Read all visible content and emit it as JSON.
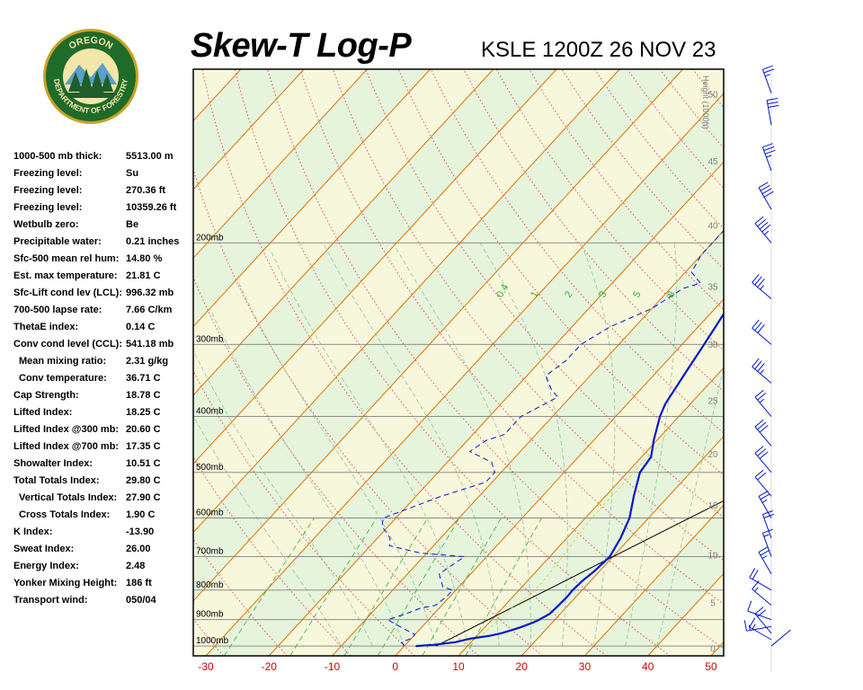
{
  "header": {
    "title": "Skew-T Log-P",
    "station_line": "KSLE 1200Z 26 NOV 23"
  },
  "logo": {
    "top_text": "OREGON",
    "bottom_text": "DEPARTMENT OF FORESTRY",
    "colors": {
      "ring": "#1f6b2a",
      "ring_border": "#c9a227",
      "sky": "#f4e6a8",
      "trees": "#1f5e2a",
      "mountain": "#5aa0c8"
    }
  },
  "indices": [
    {
      "label": "1000-500 mb thick:",
      "value": "5513.00 m",
      "indent": false
    },
    {
      "label": "Freezing level:",
      "value": "Su",
      "indent": false
    },
    {
      "label": "Freezing level:",
      "value": "270.36 ft",
      "indent": false
    },
    {
      "label": "Freezing level:",
      "value": "10359.26 ft",
      "indent": false
    },
    {
      "label": "Wetbulb zero:",
      "value": "Be",
      "indent": false
    },
    {
      "label": "Precipitable water:",
      "value": "0.21 inches",
      "indent": false
    },
    {
      "label": "Sfc-500 mean rel hum:",
      "value": "14.80 %",
      "indent": false
    },
    {
      "label": "Est. max temperature:",
      "value": "21.81 C",
      "indent": false
    },
    {
      "label": "Sfc-Lift cond lev (LCL):",
      "value": "996.32 mb",
      "indent": false
    },
    {
      "label": "700-500 lapse rate:",
      "value": "7.66 C/km",
      "indent": false
    },
    {
      "label": "ThetaE index:",
      "value": "0.14 C",
      "indent": false
    },
    {
      "label": "Conv cond level (CCL):",
      "value": "541.18 mb",
      "indent": false
    },
    {
      "label": "Mean mixing ratio:",
      "value": "2.31 g/kg",
      "indent": true
    },
    {
      "label": "Conv temperature:",
      "value": "36.71 C",
      "indent": true
    },
    {
      "label": "Cap Strength:",
      "value": "18.78 C",
      "indent": false
    },
    {
      "label": "Lifted Index:",
      "value": "18.25 C",
      "indent": false
    },
    {
      "label": "Lifted Index @300 mb:",
      "value": "20.60 C",
      "indent": false
    },
    {
      "label": "Lifted Index @700 mb:",
      "value": "17.35 C",
      "indent": false
    },
    {
      "label": "Showalter Index:",
      "value": "10.51 C",
      "indent": false
    },
    {
      "label": "Total Totals Index:",
      "value": "29.80 C",
      "indent": false
    },
    {
      "label": "Vertical Totals Index:",
      "value": "27.90 C",
      "indent": true
    },
    {
      "label": "Cross Totals Index:",
      "value": "1.90 C",
      "indent": true
    },
    {
      "label": "K Index:",
      "value": "-13.90",
      "indent": false
    },
    {
      "label": "Sweat Index:",
      "value": "26.00",
      "indent": false
    },
    {
      "label": "Energy Index:",
      "value": "2.48",
      "indent": false
    },
    {
      "label": "Yonker Mixing Height:",
      "value": "186 ft",
      "indent": false
    },
    {
      "label": "Transport wind:",
      "value": "050/04",
      "indent": false
    }
  ],
  "chart_data": {
    "type": "skew-t",
    "x_ticks": [
      -30,
      -20,
      -10,
      0,
      10,
      20,
      30,
      40,
      50
    ],
    "xlim": [
      -32,
      52
    ],
    "pressure_range_mb": [
      100,
      1040
    ],
    "pressure_labels": [
      {
        "p": 200,
        "label": "200mb"
      },
      {
        "p": 300,
        "label": "300mb"
      },
      {
        "p": 400,
        "label": "400mb"
      },
      {
        "p": 500,
        "label": "500mb"
      },
      {
        "p": 600,
        "label": "600mb"
      },
      {
        "p": 700,
        "label": "700mb"
      },
      {
        "p": 800,
        "label": "800mb"
      },
      {
        "p": 900,
        "label": "900mb"
      },
      {
        "p": 1000,
        "label": "1000mb"
      }
    ],
    "height_axis_title": "Height (1000ft)",
    "height_ticks": [
      0,
      5,
      10,
      15,
      20,
      25,
      30,
      35,
      40,
      45,
      50
    ],
    "mixing_ratio_labels": [
      "0.4",
      "1",
      "2",
      "3",
      "5",
      "8"
    ],
    "mixing_ratio_values": [
      0.4,
      1,
      2,
      3,
      5,
      8
    ],
    "temperature_profile": [
      [
        1000,
        1.8
      ],
      [
        995,
        4.5
      ],
      [
        985,
        7.5
      ],
      [
        970,
        9.5
      ],
      [
        960,
        12.0
      ],
      [
        950,
        13.5
      ],
      [
        930,
        15.5
      ],
      [
        910,
        17.0
      ],
      [
        900,
        17.5
      ],
      [
        880,
        18.3
      ],
      [
        850,
        18.5
      ],
      [
        820,
        18.6
      ],
      [
        800,
        18.5
      ],
      [
        770,
        18.7
      ],
      [
        740,
        19.2
      ],
      [
        700,
        19.5
      ],
      [
        650,
        18.5
      ],
      [
        600,
        17.0
      ],
      [
        550,
        14.5
      ],
      [
        500,
        12.0
      ],
      [
        470,
        11.5
      ],
      [
        440,
        9.5
      ],
      [
        400,
        7.0
      ],
      [
        380,
        6.0
      ],
      [
        330,
        4.5
      ],
      [
        300,
        3.5
      ],
      [
        250,
        1.5
      ],
      [
        220,
        1.5
      ],
      [
        210,
        4.0
      ],
      [
        200,
        8.5
      ],
      [
        195,
        14.0
      ],
      [
        170,
        17.0
      ],
      [
        150,
        22.0
      ],
      [
        130,
        28.0
      ],
      [
        115,
        30.0
      ],
      [
        100,
        32.0
      ]
    ],
    "dewpoint_profile": [
      [
        1000,
        0.0
      ],
      [
        985,
        -1.0
      ],
      [
        970,
        0.0
      ],
      [
        955,
        0.0
      ],
      [
        930,
        -3.0
      ],
      [
        900,
        -6.5
      ],
      [
        880,
        -4.5
      ],
      [
        860,
        -3.0
      ],
      [
        850,
        -1.0
      ],
      [
        820,
        -0.5
      ],
      [
        800,
        -0.5
      ],
      [
        790,
        -2.5
      ],
      [
        750,
        -5.0
      ],
      [
        700,
        -3.5
      ],
      [
        690,
        -11.0
      ],
      [
        670,
        -17.0
      ],
      [
        650,
        -18.0
      ],
      [
        620,
        -21.0
      ],
      [
        600,
        -22.0
      ],
      [
        550,
        -16.0
      ],
      [
        520,
        -11.0
      ],
      [
        500,
        -11.0
      ],
      [
        480,
        -13.0
      ],
      [
        460,
        -18.0
      ],
      [
        440,
        -17.0
      ],
      [
        430,
        -15.0
      ],
      [
        400,
        -15.0
      ],
      [
        380,
        -13.0
      ],
      [
        370,
        -12.0
      ],
      [
        360,
        -14.0
      ],
      [
        340,
        -17.0
      ],
      [
        320,
        -16.0
      ],
      [
        300,
        -16.0
      ],
      [
        280,
        -14.0
      ],
      [
        260,
        -10.0
      ],
      [
        240,
        -8.0
      ],
      [
        235,
        -6.0
      ],
      [
        225,
        -9.0
      ],
      [
        210,
        -10.0
      ],
      [
        200,
        -10.0
      ],
      [
        180,
        -10.0
      ],
      [
        160,
        -11.0
      ],
      [
        140,
        -12.0
      ],
      [
        120,
        -12.0
      ],
      [
        100,
        -9.0
      ]
    ],
    "parcel_profile": [
      [
        990,
        9.0
      ],
      [
        960,
        10.5
      ],
      [
        930,
        11.0
      ],
      [
        900,
        11.0
      ],
      [
        860,
        11.5
      ],
      [
        830,
        12.0
      ],
      [
        800,
        12.5
      ],
      [
        770,
        12.5
      ],
      [
        740,
        12.3
      ],
      [
        700,
        12.0
      ],
      [
        650,
        11.5
      ],
      [
        600,
        11.0
      ],
      [
        550,
        11.0
      ],
      [
        500,
        11.0
      ],
      [
        470,
        11.0
      ],
      [
        440,
        11.0
      ],
      [
        420,
        10.0
      ]
    ],
    "wind_barbs": [
      {
        "p": 1000,
        "dir": 50,
        "spd": 4
      },
      {
        "p": 975,
        "dir": 300,
        "spd": 15
      },
      {
        "p": 950,
        "dir": 320,
        "spd": 20
      },
      {
        "p": 925,
        "dir": 260,
        "spd": 15
      },
      {
        "p": 900,
        "dir": 290,
        "spd": 10
      },
      {
        "p": 850,
        "dir": 310,
        "spd": 15
      },
      {
        "p": 800,
        "dir": 300,
        "spd": 20
      },
      {
        "p": 750,
        "dir": 330,
        "spd": 25
      },
      {
        "p": 700,
        "dir": 340,
        "spd": 15
      },
      {
        "p": 650,
        "dir": 340,
        "spd": 20
      },
      {
        "p": 600,
        "dir": 330,
        "spd": 25
      },
      {
        "p": 550,
        "dir": 320,
        "spd": 20
      },
      {
        "p": 500,
        "dir": 320,
        "spd": 30
      },
      {
        "p": 450,
        "dir": 320,
        "spd": 30
      },
      {
        "p": 400,
        "dir": 320,
        "spd": 25
      },
      {
        "p": 350,
        "dir": 310,
        "spd": 35
      },
      {
        "p": 300,
        "dir": 310,
        "spd": 30
      },
      {
        "p": 250,
        "dir": 310,
        "spd": 35
      },
      {
        "p": 200,
        "dir": 320,
        "spd": 45
      },
      {
        "p": 175,
        "dir": 330,
        "spd": 40
      },
      {
        "p": 150,
        "dir": 340,
        "spd": 35
      },
      {
        "p": 125,
        "dir": 350,
        "spd": 30
      },
      {
        "p": 110,
        "dir": 340,
        "spd": 25
      }
    ],
    "colors": {
      "temperature": "#0018cc",
      "dewpoint": "#0018cc",
      "parcel": "#e6d63a",
      "isotherm_band_a": "#f7f7dc",
      "isotherm_band_b": "#e6f4dc",
      "isotherm_line": "#e07000",
      "dry_adiabat": "#e05050",
      "moist_adiabat": "#a0c8a0",
      "mixing_ratio": "#30b030",
      "isobar": "#808080",
      "tick_label": "#cc0000",
      "pressure_label": "#000000",
      "height_label": "#808080",
      "reference_line": "#000000"
    }
  }
}
